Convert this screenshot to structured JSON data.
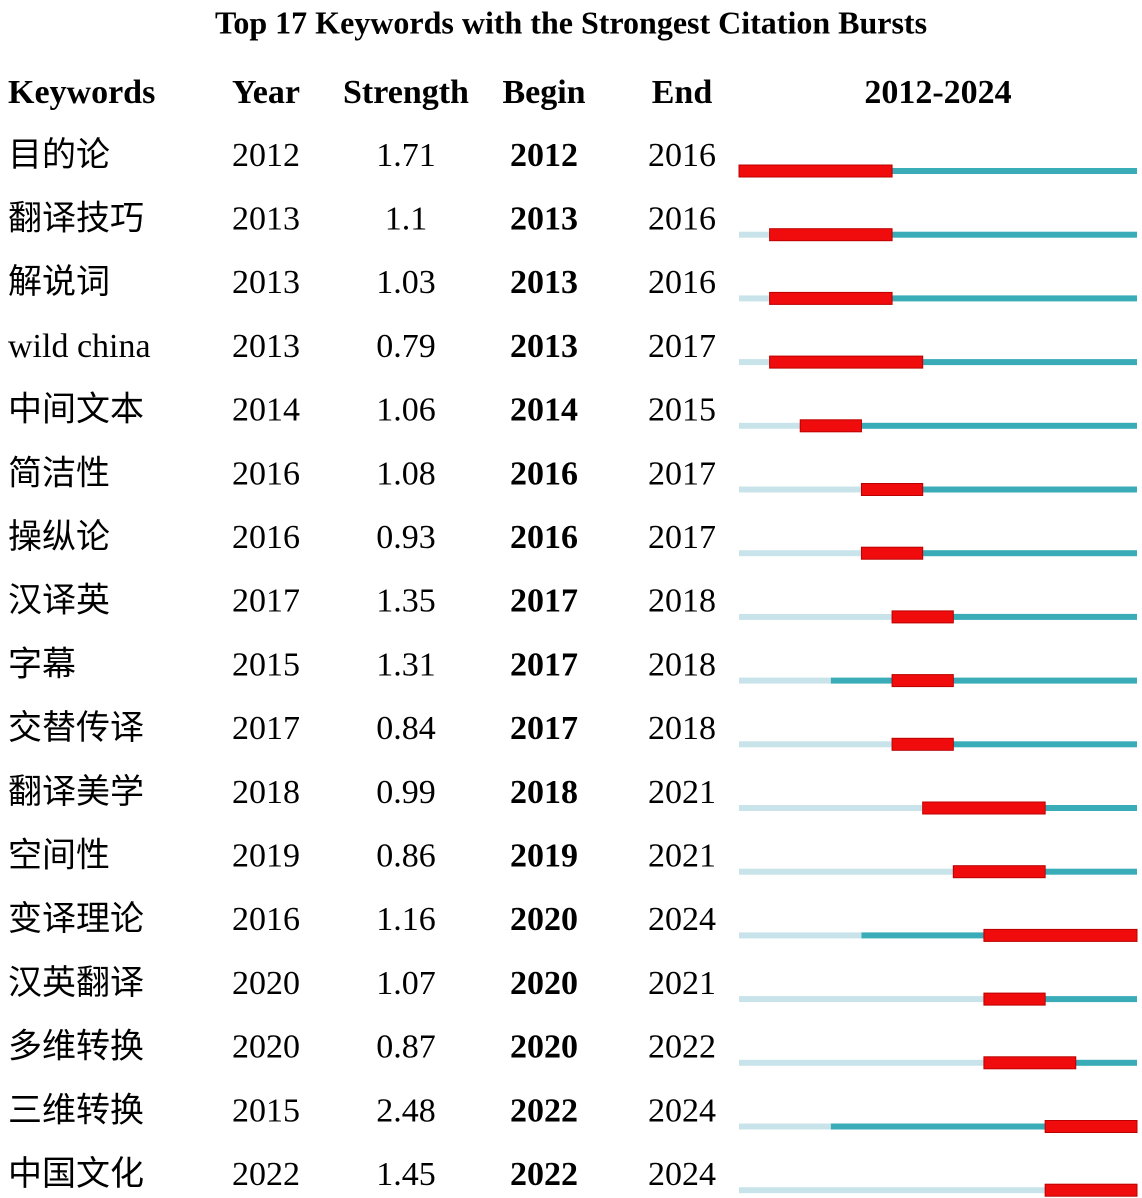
{
  "chart_data": {
    "type": "burst",
    "title": "Top 17 Keywords with the Strongest Citation Bursts",
    "columns": [
      "Keywords",
      "Year",
      "Strength",
      "Begin",
      "End"
    ],
    "timeline_label": "2012-2024",
    "xlim": [
      2012,
      2024
    ],
    "colors": {
      "before": "#c8e4ea",
      "active": "#3aacb8",
      "burst": "#f00c0c"
    },
    "rows": [
      {
        "keyword": "目的论",
        "year": 2012,
        "strength": 1.71,
        "begin": 2012,
        "end": 2016
      },
      {
        "keyword": "翻译技巧",
        "year": 2013,
        "strength": 1.1,
        "begin": 2013,
        "end": 2016
      },
      {
        "keyword": "解说词",
        "year": 2013,
        "strength": 1.03,
        "begin": 2013,
        "end": 2016
      },
      {
        "keyword": "wild china",
        "year": 2013,
        "strength": 0.79,
        "begin": 2013,
        "end": 2017
      },
      {
        "keyword": "中间文本",
        "year": 2014,
        "strength": 1.06,
        "begin": 2014,
        "end": 2015
      },
      {
        "keyword": "简洁性",
        "year": 2016,
        "strength": 1.08,
        "begin": 2016,
        "end": 2017
      },
      {
        "keyword": "操纵论",
        "year": 2016,
        "strength": 0.93,
        "begin": 2016,
        "end": 2017
      },
      {
        "keyword": "汉译英",
        "year": 2017,
        "strength": 1.35,
        "begin": 2017,
        "end": 2018
      },
      {
        "keyword": "字幕",
        "year": 2015,
        "strength": 1.31,
        "begin": 2017,
        "end": 2018
      },
      {
        "keyword": "交替传译",
        "year": 2017,
        "strength": 0.84,
        "begin": 2017,
        "end": 2018
      },
      {
        "keyword": "翻译美学",
        "year": 2018,
        "strength": 0.99,
        "begin": 2018,
        "end": 2021
      },
      {
        "keyword": "空间性",
        "year": 2019,
        "strength": 0.86,
        "begin": 2019,
        "end": 2021
      },
      {
        "keyword": "变译理论",
        "year": 2016,
        "strength": 1.16,
        "begin": 2020,
        "end": 2024
      },
      {
        "keyword": "汉英翻译",
        "year": 2020,
        "strength": 1.07,
        "begin": 2020,
        "end": 2021
      },
      {
        "keyword": "多维转换",
        "year": 2020,
        "strength": 0.87,
        "begin": 2020,
        "end": 2022
      },
      {
        "keyword": "三维转换",
        "year": 2015,
        "strength": 2.48,
        "begin": 2022,
        "end": 2024
      },
      {
        "keyword": "中国文化",
        "year": 2022,
        "strength": 1.45,
        "begin": 2022,
        "end": 2024
      }
    ]
  }
}
